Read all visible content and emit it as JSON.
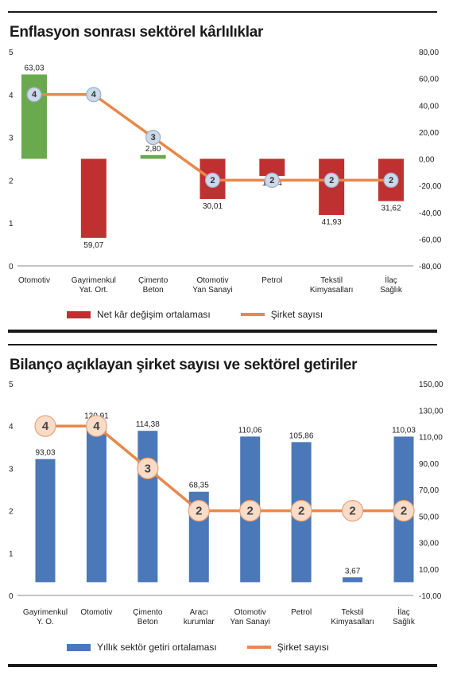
{
  "chart_data": [
    {
      "type": "bar",
      "title": "Enflasyon sonrası sektörel kârlılıklar",
      "categories": [
        [
          "Otomotiv"
        ],
        [
          "Gayrimenkul",
          "Yat. Ort."
        ],
        [
          "Çimento",
          "Beton"
        ],
        [
          "Otomotiv",
          "Yan Sanayi"
        ],
        [
          "Petrol"
        ],
        [
          "Tekstil",
          "Kimyasalları"
        ],
        [
          "İlaç",
          "Sağlık"
        ]
      ],
      "series": [
        {
          "name": "Net kâr değişim ortalaması",
          "axis": "right",
          "type": "bar",
          "color": "#bf3030",
          "values": [
            63.03,
            -59.07,
            2.8,
            -30.01,
            -12.84,
            -41.93,
            -31.62
          ],
          "labels": [
            "63,03",
            "59,07",
            "2,80",
            "30,01",
            "12,84",
            "41,93",
            "31,62"
          ],
          "colors": [
            "#6aaa4e",
            "#bf3030",
            "#6aaa4e",
            "#bf3030",
            "#bf3030",
            "#bf3030",
            "#bf3030"
          ]
        },
        {
          "name": "Şirket sayısı",
          "axis": "left",
          "type": "line",
          "color": "#e8884c",
          "values": [
            4,
            4,
            3,
            2,
            2,
            2,
            2
          ],
          "labels": [
            "4",
            "4",
            "3",
            "2",
            "2",
            "2",
            "2"
          ]
        }
      ],
      "left_axis": {
        "ylim": [
          0,
          5
        ],
        "ticks": [
          "0",
          "1",
          "2",
          "3",
          "4",
          "5"
        ]
      },
      "right_axis": {
        "ylim": [
          -80,
          80
        ],
        "ticks": [
          "-80,00",
          "-60,00",
          "-40,00",
          "-20,00",
          "0,00",
          "20,00",
          "40,00",
          "60,00",
          "80,00"
        ]
      },
      "marker_style": {
        "fill": "#cdd9e8",
        "stroke": "#9aaec8",
        "text": "#333333"
      },
      "grid": false,
      "legend": "bottom"
    },
    {
      "type": "bar",
      "title": "Bilanço açıklayan şirket sayısı ve sektörel getiriler",
      "categories": [
        [
          "Gayrimenkul",
          "Y. O."
        ],
        [
          "Otomotiv"
        ],
        [
          "Çimento",
          "Beton"
        ],
        [
          "Aracı",
          "kurumlar"
        ],
        [
          "Otomotiv",
          "Yan Sanayi"
        ],
        [
          "Petrol"
        ],
        [
          "Tekstil",
          "Kimyasalları"
        ],
        [
          "İlaç",
          "Sağlık"
        ]
      ],
      "series": [
        {
          "name": "Yıllık sektör getiri ortalaması",
          "axis": "right",
          "type": "bar",
          "color": "#4a78b8",
          "values": [
            93.03,
            120.91,
            114.38,
            68.35,
            110.06,
            105.86,
            3.67,
            110.03
          ],
          "labels": [
            "93,03",
            "120,91",
            "114,38",
            "68,35",
            "110,06",
            "105,86",
            "3,67",
            "110,03"
          ]
        },
        {
          "name": "Şirket sayısı",
          "axis": "left",
          "type": "line",
          "color": "#e8884c",
          "values": [
            4,
            4,
            3,
            2,
            2,
            2,
            2,
            2
          ],
          "labels": [
            "4",
            "4",
            "3",
            "2",
            "2",
            "2",
            "2",
            "2"
          ]
        }
      ],
      "left_axis": {
        "ylim": [
          0,
          5
        ],
        "ticks": [
          "0",
          "1",
          "2",
          "3",
          "4",
          "5"
        ]
      },
      "right_axis": {
        "ylim": [
          -10,
          150
        ],
        "ticks": [
          "-10,00",
          "10,00",
          "30,00",
          "50,00",
          "70,00",
          "90,00",
          "110,00",
          "130,00",
          "150,00"
        ]
      },
      "marker_style": {
        "fill": "#f8dcc8",
        "stroke": "#e8a07a",
        "text": "#444444"
      },
      "grid": false,
      "legend": "bottom"
    }
  ]
}
